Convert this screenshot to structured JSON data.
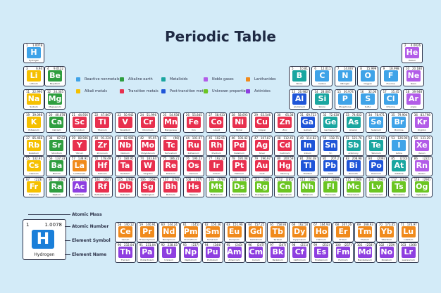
{
  "title": "Periodic Table",
  "colors": {
    "reactive": "#3fa3e8",
    "alkaline": "#2f9e3f",
    "metalloid": "#1aa6a0",
    "noble": "#b25ce8",
    "lanthanide": "#f08a1c",
    "alkali": "#f5c000",
    "transition": "#e8304e",
    "post": "#1f55d8",
    "unknown": "#6bc522",
    "actinide": "#8e3fe0"
  },
  "legend": [
    {
      "label": "Reactive nonmetals",
      "cat": "reactive"
    },
    {
      "label": "Alkaline earth",
      "cat": "alkaline"
    },
    {
      "label": "Metalloids",
      "cat": "metalloid"
    },
    {
      "label": "Noble gases",
      "cat": "noble"
    },
    {
      "label": "Lanthanides",
      "cat": "lanthanide"
    },
    {
      "label": "Alkali metals",
      "cat": "alkali"
    },
    {
      "label": "Transition metals",
      "cat": "transition"
    },
    {
      "label": "Post-transition metals",
      "cat": "post"
    },
    {
      "label": "Unknown properties",
      "cat": "unknown"
    },
    {
      "label": "Actinides",
      "cat": "actinide"
    }
  ],
  "key": {
    "number": "1",
    "mass": "1.0078",
    "symbol": "H",
    "name": "Hydrogen",
    "labels": {
      "mass": "Atomic Mass",
      "number": "Atomic Number",
      "symbol": "Element Symbol",
      "name": "Element Name"
    }
  },
  "elements": [
    {
      "n": 1,
      "s": "H",
      "name": "Hydrogen",
      "mass": "1.0078",
      "c": "reactive"
    },
    {
      "n": 2,
      "s": "He",
      "name": "Helium",
      "mass": "4.0026",
      "c": "noble"
    },
    {
      "n": 3,
      "s": "Li",
      "name": "Lithium",
      "mass": "6.94",
      "c": "alkali"
    },
    {
      "n": 4,
      "s": "Be",
      "name": "Beryllium",
      "mass": "9.0122",
      "c": "alkaline"
    },
    {
      "n": 5,
      "s": "B",
      "name": "Boron",
      "mass": "10.81",
      "c": "metalloid"
    },
    {
      "n": 6,
      "s": "C",
      "name": "Carbon",
      "mass": "12.011",
      "c": "reactive"
    },
    {
      "n": 7,
      "s": "N",
      "name": "Nitrogen",
      "mass": "14.007",
      "c": "reactive"
    },
    {
      "n": 8,
      "s": "O",
      "name": "Oxygen",
      "mass": "15.999",
      "c": "reactive"
    },
    {
      "n": 9,
      "s": "F",
      "name": "Fluorine",
      "mass": "18.998",
      "c": "reactive"
    },
    {
      "n": 10,
      "s": "Ne",
      "name": "Neon",
      "mass": "20.180",
      "c": "noble"
    },
    {
      "n": 11,
      "s": "Na",
      "name": "Sodium",
      "mass": "22.990",
      "c": "alkali"
    },
    {
      "n": 12,
      "s": "Mg",
      "name": "Magnesium",
      "mass": "24.305",
      "c": "alkaline"
    },
    {
      "n": 13,
      "s": "Al",
      "name": "Aluminium",
      "mass": "26.982",
      "c": "post"
    },
    {
      "n": 14,
      "s": "Si",
      "name": "Silicon",
      "mass": "28.085",
      "c": "metalloid"
    },
    {
      "n": 15,
      "s": "P",
      "name": "Phosphorus",
      "mass": "30.974",
      "c": "reactive"
    },
    {
      "n": 16,
      "s": "S",
      "name": "Sulfur",
      "mass": "32.06",
      "c": "reactive"
    },
    {
      "n": 17,
      "s": "Cl",
      "name": "Chlorine",
      "mass": "35.45",
      "c": "reactive"
    },
    {
      "n": 18,
      "s": "Ar",
      "name": "Argon",
      "mass": "39.948",
      "c": "noble"
    },
    {
      "n": 19,
      "s": "K",
      "name": "Potassium",
      "mass": "39.098",
      "c": "alkali"
    },
    {
      "n": 20,
      "s": "Ca",
      "name": "Calcium",
      "mass": "40.078",
      "c": "alkaline"
    },
    {
      "n": 21,
      "s": "Sc",
      "name": "Scandium",
      "mass": "44.956",
      "c": "transition"
    },
    {
      "n": 22,
      "s": "Ti",
      "name": "Titanium",
      "mass": "47.867",
      "c": "transition"
    },
    {
      "n": 23,
      "s": "V",
      "name": "Vanadium",
      "mass": "50.942",
      "c": "transition"
    },
    {
      "n": 24,
      "s": "Cr",
      "name": "Chromium",
      "mass": "51.996",
      "c": "transition"
    },
    {
      "n": 25,
      "s": "Mn",
      "name": "Manganese",
      "mass": "54.938",
      "c": "transition"
    },
    {
      "n": 26,
      "s": "Fe",
      "name": "Iron",
      "mass": "55.845",
      "c": "transition"
    },
    {
      "n": 27,
      "s": "Co",
      "name": "Cobalt",
      "mass": "58.933",
      "c": "transition"
    },
    {
      "n": 28,
      "s": "Ni",
      "name": "Nickel",
      "mass": "58.693",
      "c": "transition"
    },
    {
      "n": 29,
      "s": "Cu",
      "name": "Copper",
      "mass": "63.546",
      "c": "transition"
    },
    {
      "n": 30,
      "s": "Zn",
      "name": "Zinc",
      "mass": "65.38",
      "c": "transition"
    },
    {
      "n": 31,
      "s": "Ga",
      "name": "Gallium",
      "mass": "69.723",
      "c": "post"
    },
    {
      "n": 32,
      "s": "Ge",
      "name": "Germanium",
      "mass": "72.630",
      "c": "metalloid"
    },
    {
      "n": 33,
      "s": "As",
      "name": "Arsenic",
      "mass": "74.922",
      "c": "metalloid"
    },
    {
      "n": 34,
      "s": "Se",
      "name": "Selenium",
      "mass": "78.971",
      "c": "reactive"
    },
    {
      "n": 35,
      "s": "Br",
      "name": "Bromine",
      "mass": "79.904",
      "c": "reactive"
    },
    {
      "n": 36,
      "s": "Kr",
      "name": "Krypton",
      "mass": "83.798",
      "c": "noble"
    },
    {
      "n": 37,
      "s": "Rb",
      "name": "Rubidium",
      "mass": "85.468",
      "c": "alkali"
    },
    {
      "n": 38,
      "s": "Sr",
      "name": "Strontium",
      "mass": "87.62",
      "c": "alkaline"
    },
    {
      "n": 39,
      "s": "Y",
      "name": "Yttrium",
      "mass": "88.906",
      "c": "transition"
    },
    {
      "n": 40,
      "s": "Zr",
      "name": "Zirconium",
      "mass": "91.224",
      "c": "transition"
    },
    {
      "n": 41,
      "s": "Nb",
      "name": "Niobium",
      "mass": "92.906",
      "c": "transition"
    },
    {
      "n": 42,
      "s": "Mo",
      "name": "Molybdenum",
      "mass": "95.95",
      "c": "transition"
    },
    {
      "n": 43,
      "s": "Tc",
      "name": "Technetium",
      "mass": "(98)",
      "c": "transition"
    },
    {
      "n": 44,
      "s": "Ru",
      "name": "Ruthenium",
      "mass": "101.07",
      "c": "transition"
    },
    {
      "n": 45,
      "s": "Rh",
      "name": "Rhodium",
      "mass": "102.91",
      "c": "transition"
    },
    {
      "n": 46,
      "s": "Pd",
      "name": "Palladium",
      "mass": "106.42",
      "c": "transition"
    },
    {
      "n": 47,
      "s": "Ag",
      "name": "Silver",
      "mass": "107.87",
      "c": "transition"
    },
    {
      "n": 48,
      "s": "Cd",
      "name": "Cadmium",
      "mass": "112.41",
      "c": "transition"
    },
    {
      "n": 49,
      "s": "In",
      "name": "Indium",
      "mass": "114.82",
      "c": "post"
    },
    {
      "n": 50,
      "s": "Sn",
      "name": "Tin",
      "mass": "118.71",
      "c": "post"
    },
    {
      "n": 51,
      "s": "Sb",
      "name": "Antimony",
      "mass": "121.76",
      "c": "metalloid"
    },
    {
      "n": 52,
      "s": "Te",
      "name": "Tellurium",
      "mass": "127.60",
      "c": "metalloid"
    },
    {
      "n": 53,
      "s": "I",
      "name": "Iodine",
      "mass": "126.90",
      "c": "reactive"
    },
    {
      "n": 54,
      "s": "Xe",
      "name": "Xenon",
      "mass": "131.29",
      "c": "noble"
    },
    {
      "n": 55,
      "s": "Cs",
      "name": "Caesium",
      "mass": "132.91",
      "c": "alkali"
    },
    {
      "n": 56,
      "s": "Ba",
      "name": "Barium",
      "mass": "137.33",
      "c": "alkaline"
    },
    {
      "n": 57,
      "s": "La",
      "name": "Lanthanum",
      "mass": "138.91",
      "c": "lanthanide"
    },
    {
      "n": 72,
      "s": "Hf",
      "name": "Hafnium",
      "mass": "178.49",
      "c": "transition"
    },
    {
      "n": 73,
      "s": "Ta",
      "name": "Tantalum",
      "mass": "180.95",
      "c": "transition"
    },
    {
      "n": 74,
      "s": "W",
      "name": "Tungsten",
      "mass": "183.84",
      "c": "transition"
    },
    {
      "n": 75,
      "s": "Re",
      "name": "Rhenium",
      "mass": "186.21",
      "c": "transition"
    },
    {
      "n": 76,
      "s": "Os",
      "name": "Osmium",
      "mass": "190.23",
      "c": "transition"
    },
    {
      "n": 77,
      "s": "Ir",
      "name": "Iridium",
      "mass": "192.22",
      "c": "transition"
    },
    {
      "n": 78,
      "s": "Pt",
      "name": "Platinum",
      "mass": "195.08",
      "c": "transition"
    },
    {
      "n": 79,
      "s": "Au",
      "name": "Gold",
      "mass": "196.97",
      "c": "transition"
    },
    {
      "n": 80,
      "s": "Hg",
      "name": "Mercury",
      "mass": "200.59",
      "c": "transition"
    },
    {
      "n": 81,
      "s": "Tl",
      "name": "Thallium",
      "mass": "204.38",
      "c": "post"
    },
    {
      "n": 82,
      "s": "Pb",
      "name": "Lead",
      "mass": "207.2",
      "c": "post"
    },
    {
      "n": 83,
      "s": "Bi",
      "name": "Bismuth",
      "mass": "208.98",
      "c": "post"
    },
    {
      "n": 84,
      "s": "Po",
      "name": "Polonium",
      "mass": "(209)",
      "c": "post"
    },
    {
      "n": 85,
      "s": "At",
      "name": "Astatine",
      "mass": "(210)",
      "c": "metalloid"
    },
    {
      "n": 86,
      "s": "Rn",
      "name": "Radon",
      "mass": "(222)",
      "c": "noble"
    },
    {
      "n": 87,
      "s": "Fr",
      "name": "Francium",
      "mass": "(223)",
      "c": "alkali"
    },
    {
      "n": 88,
      "s": "Ra",
      "name": "Radium",
      "mass": "(226)",
      "c": "alkaline"
    },
    {
      "n": 89,
      "s": "Ac",
      "name": "Actinium",
      "mass": "(227)",
      "c": "actinide"
    },
    {
      "n": 104,
      "s": "Rf",
      "name": "Rutherfordium",
      "mass": "(267)",
      "c": "transition"
    },
    {
      "n": 105,
      "s": "Db",
      "name": "Dubnium",
      "mass": "(268)",
      "c": "transition"
    },
    {
      "n": 106,
      "s": "Sg",
      "name": "Seaborgium",
      "mass": "(269)",
      "c": "transition"
    },
    {
      "n": 107,
      "s": "Bh",
      "name": "Bohrium",
      "mass": "(270)",
      "c": "transition"
    },
    {
      "n": 108,
      "s": "Hs",
      "name": "Hassium",
      "mass": "(277)",
      "c": "transition"
    },
    {
      "n": 109,
      "s": "Mt",
      "name": "Meitnerium",
      "mass": "(278)",
      "c": "unknown"
    },
    {
      "n": 110,
      "s": "Ds",
      "name": "Darmstadtium",
      "mass": "(281)",
      "c": "unknown"
    },
    {
      "n": 111,
      "s": "Rg",
      "name": "Roentgenium",
      "mass": "(282)",
      "c": "unknown"
    },
    {
      "n": 112,
      "s": "Cn",
      "name": "Copernicium",
      "mass": "(285)",
      "c": "unknown"
    },
    {
      "n": 113,
      "s": "Nh",
      "name": "Nihonium",
      "mass": "(286)",
      "c": "unknown"
    },
    {
      "n": 114,
      "s": "Fl",
      "name": "Flerovium",
      "mass": "(289)",
      "c": "unknown"
    },
    {
      "n": 115,
      "s": "Mc",
      "name": "Moscovium",
      "mass": "(290)",
      "c": "unknown"
    },
    {
      "n": 116,
      "s": "Lv",
      "name": "Livermorium",
      "mass": "(293)",
      "c": "unknown"
    },
    {
      "n": 117,
      "s": "Ts",
      "name": "Tennessine",
      "mass": "(294)",
      "c": "unknown"
    },
    {
      "n": 118,
      "s": "Og",
      "name": "Oganesson",
      "mass": "(294)",
      "c": "unknown"
    },
    {
      "n": 58,
      "s": "Ce",
      "name": "Cerium",
      "mass": "140.12",
      "c": "lanthanide"
    },
    {
      "n": 59,
      "s": "Pr",
      "name": "Praseodymium",
      "mass": "140.91",
      "c": "lanthanide"
    },
    {
      "n": 60,
      "s": "Nd",
      "name": "Neodymium",
      "mass": "144.24",
      "c": "lanthanide"
    },
    {
      "n": 61,
      "s": "Pm",
      "name": "Promethium",
      "mass": "(145)",
      "c": "lanthanide"
    },
    {
      "n": 62,
      "s": "Sm",
      "name": "Samarium",
      "mass": "150.36",
      "c": "lanthanide"
    },
    {
      "n": 63,
      "s": "Eu",
      "name": "Europium",
      "mass": "151.96",
      "c": "lanthanide"
    },
    {
      "n": 64,
      "s": "Gd",
      "name": "Gadolinium",
      "mass": "157.25",
      "c": "lanthanide"
    },
    {
      "n": 65,
      "s": "Tb",
      "name": "Terbium",
      "mass": "158.93",
      "c": "lanthanide"
    },
    {
      "n": 66,
      "s": "Dy",
      "name": "Dysprosium",
      "mass": "162.50",
      "c": "lanthanide"
    },
    {
      "n": 67,
      "s": "Ho",
      "name": "Holmium",
      "mass": "164.93",
      "c": "lanthanide"
    },
    {
      "n": 68,
      "s": "Er",
      "name": "Erbium",
      "mass": "167.26",
      "c": "lanthanide"
    },
    {
      "n": 69,
      "s": "Tm",
      "name": "Thulium",
      "mass": "168.93",
      "c": "lanthanide"
    },
    {
      "n": 70,
      "s": "Yb",
      "name": "Ytterbium",
      "mass": "173.05",
      "c": "lanthanide"
    },
    {
      "n": 71,
      "s": "Lu",
      "name": "Lutetium",
      "mass": "174.97",
      "c": "lanthanide"
    },
    {
      "n": 90,
      "s": "Th",
      "name": "Thorium",
      "mass": "232.04",
      "c": "actinide"
    },
    {
      "n": 91,
      "s": "Pa",
      "name": "Protactinium",
      "mass": "231.04",
      "c": "actinide"
    },
    {
      "n": 92,
      "s": "U",
      "name": "Uranium",
      "mass": "238.03",
      "c": "actinide"
    },
    {
      "n": 93,
      "s": "Np",
      "name": "Neptunium",
      "mass": "(237)",
      "c": "actinide"
    },
    {
      "n": 94,
      "s": "Pu",
      "name": "Plutonium",
      "mass": "(244)",
      "c": "actinide"
    },
    {
      "n": 95,
      "s": "Am",
      "name": "Americium",
      "mass": "(243)",
      "c": "actinide"
    },
    {
      "n": 96,
      "s": "Cm",
      "name": "Curium",
      "mass": "(247)",
      "c": "actinide"
    },
    {
      "n": 97,
      "s": "Bk",
      "name": "Berkelium",
      "mass": "(247)",
      "c": "actinide"
    },
    {
      "n": 98,
      "s": "Cf",
      "name": "Californium",
      "mass": "(251)",
      "c": "actinide"
    },
    {
      "n": 99,
      "s": "Es",
      "name": "Einsteinium",
      "mass": "(252)",
      "c": "actinide"
    },
    {
      "n": 100,
      "s": "Fm",
      "name": "Fermium",
      "mass": "(257)",
      "c": "actinide"
    },
    {
      "n": 101,
      "s": "Md",
      "name": "Mendelevium",
      "mass": "(258)",
      "c": "actinide"
    },
    {
      "n": 102,
      "s": "No",
      "name": "Nobelium",
      "mass": "(259)",
      "c": "actinide"
    },
    {
      "n": 103,
      "s": "Lr",
      "name": "Lawrencium",
      "mass": "(266)",
      "c": "actinide"
    }
  ]
}
